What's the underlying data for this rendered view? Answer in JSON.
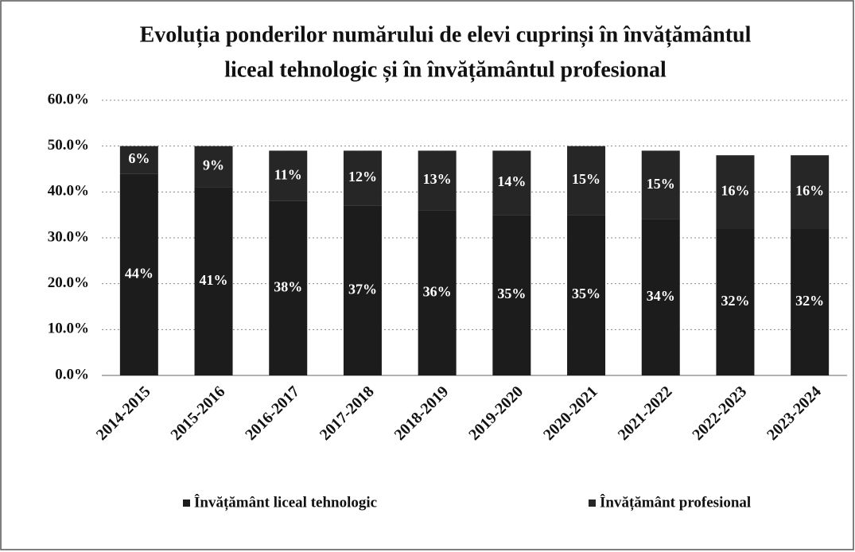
{
  "chart_data": {
    "type": "stacked_bar",
    "title": [
      "Evoluția ponderilor numărului de elevi cuprinși în învățământul",
      "liceal tehnologic și în învățământul profesional"
    ],
    "categories": [
      "2014-2015",
      "2015-2016",
      "2016-2017",
      "2017-2018",
      "2018-2019",
      "2019-2020",
      "2020-2021",
      "2021-2022",
      "2022-2023",
      "2023-2024"
    ],
    "series": [
      {
        "name": "Învățământ liceal tehnologic",
        "color": "#1c1c1c",
        "values": [
          44,
          41,
          38,
          37,
          36,
          35,
          35,
          34,
          32,
          32
        ],
        "value_labels": [
          "44%",
          "41%",
          "38%",
          "37%",
          "36%",
          "35%",
          "35%",
          "34%",
          "32%",
          "32%"
        ]
      },
      {
        "name": "Învățământ profesional",
        "color": "#262626",
        "values": [
          6,
          9,
          11,
          12,
          13,
          14,
          15,
          15,
          16,
          16
        ],
        "value_labels": [
          "6%",
          "9%",
          "11%",
          "12%",
          "13%",
          "14%",
          "15%",
          "15%",
          "16%",
          "16%"
        ]
      }
    ],
    "ylim": [
      0,
      60
    ],
    "yticks": [
      {
        "value": 0,
        "label": "0.0%"
      },
      {
        "value": 10,
        "label": "10.0%"
      },
      {
        "value": 20,
        "label": "20.0%"
      },
      {
        "value": 30,
        "label": "30.0%"
      },
      {
        "value": 40,
        "label": "40.0%"
      },
      {
        "value": 50,
        "label": "50.0%"
      },
      {
        "value": 60,
        "label": "60.0%"
      }
    ],
    "grid": true,
    "legend": "bottom"
  }
}
